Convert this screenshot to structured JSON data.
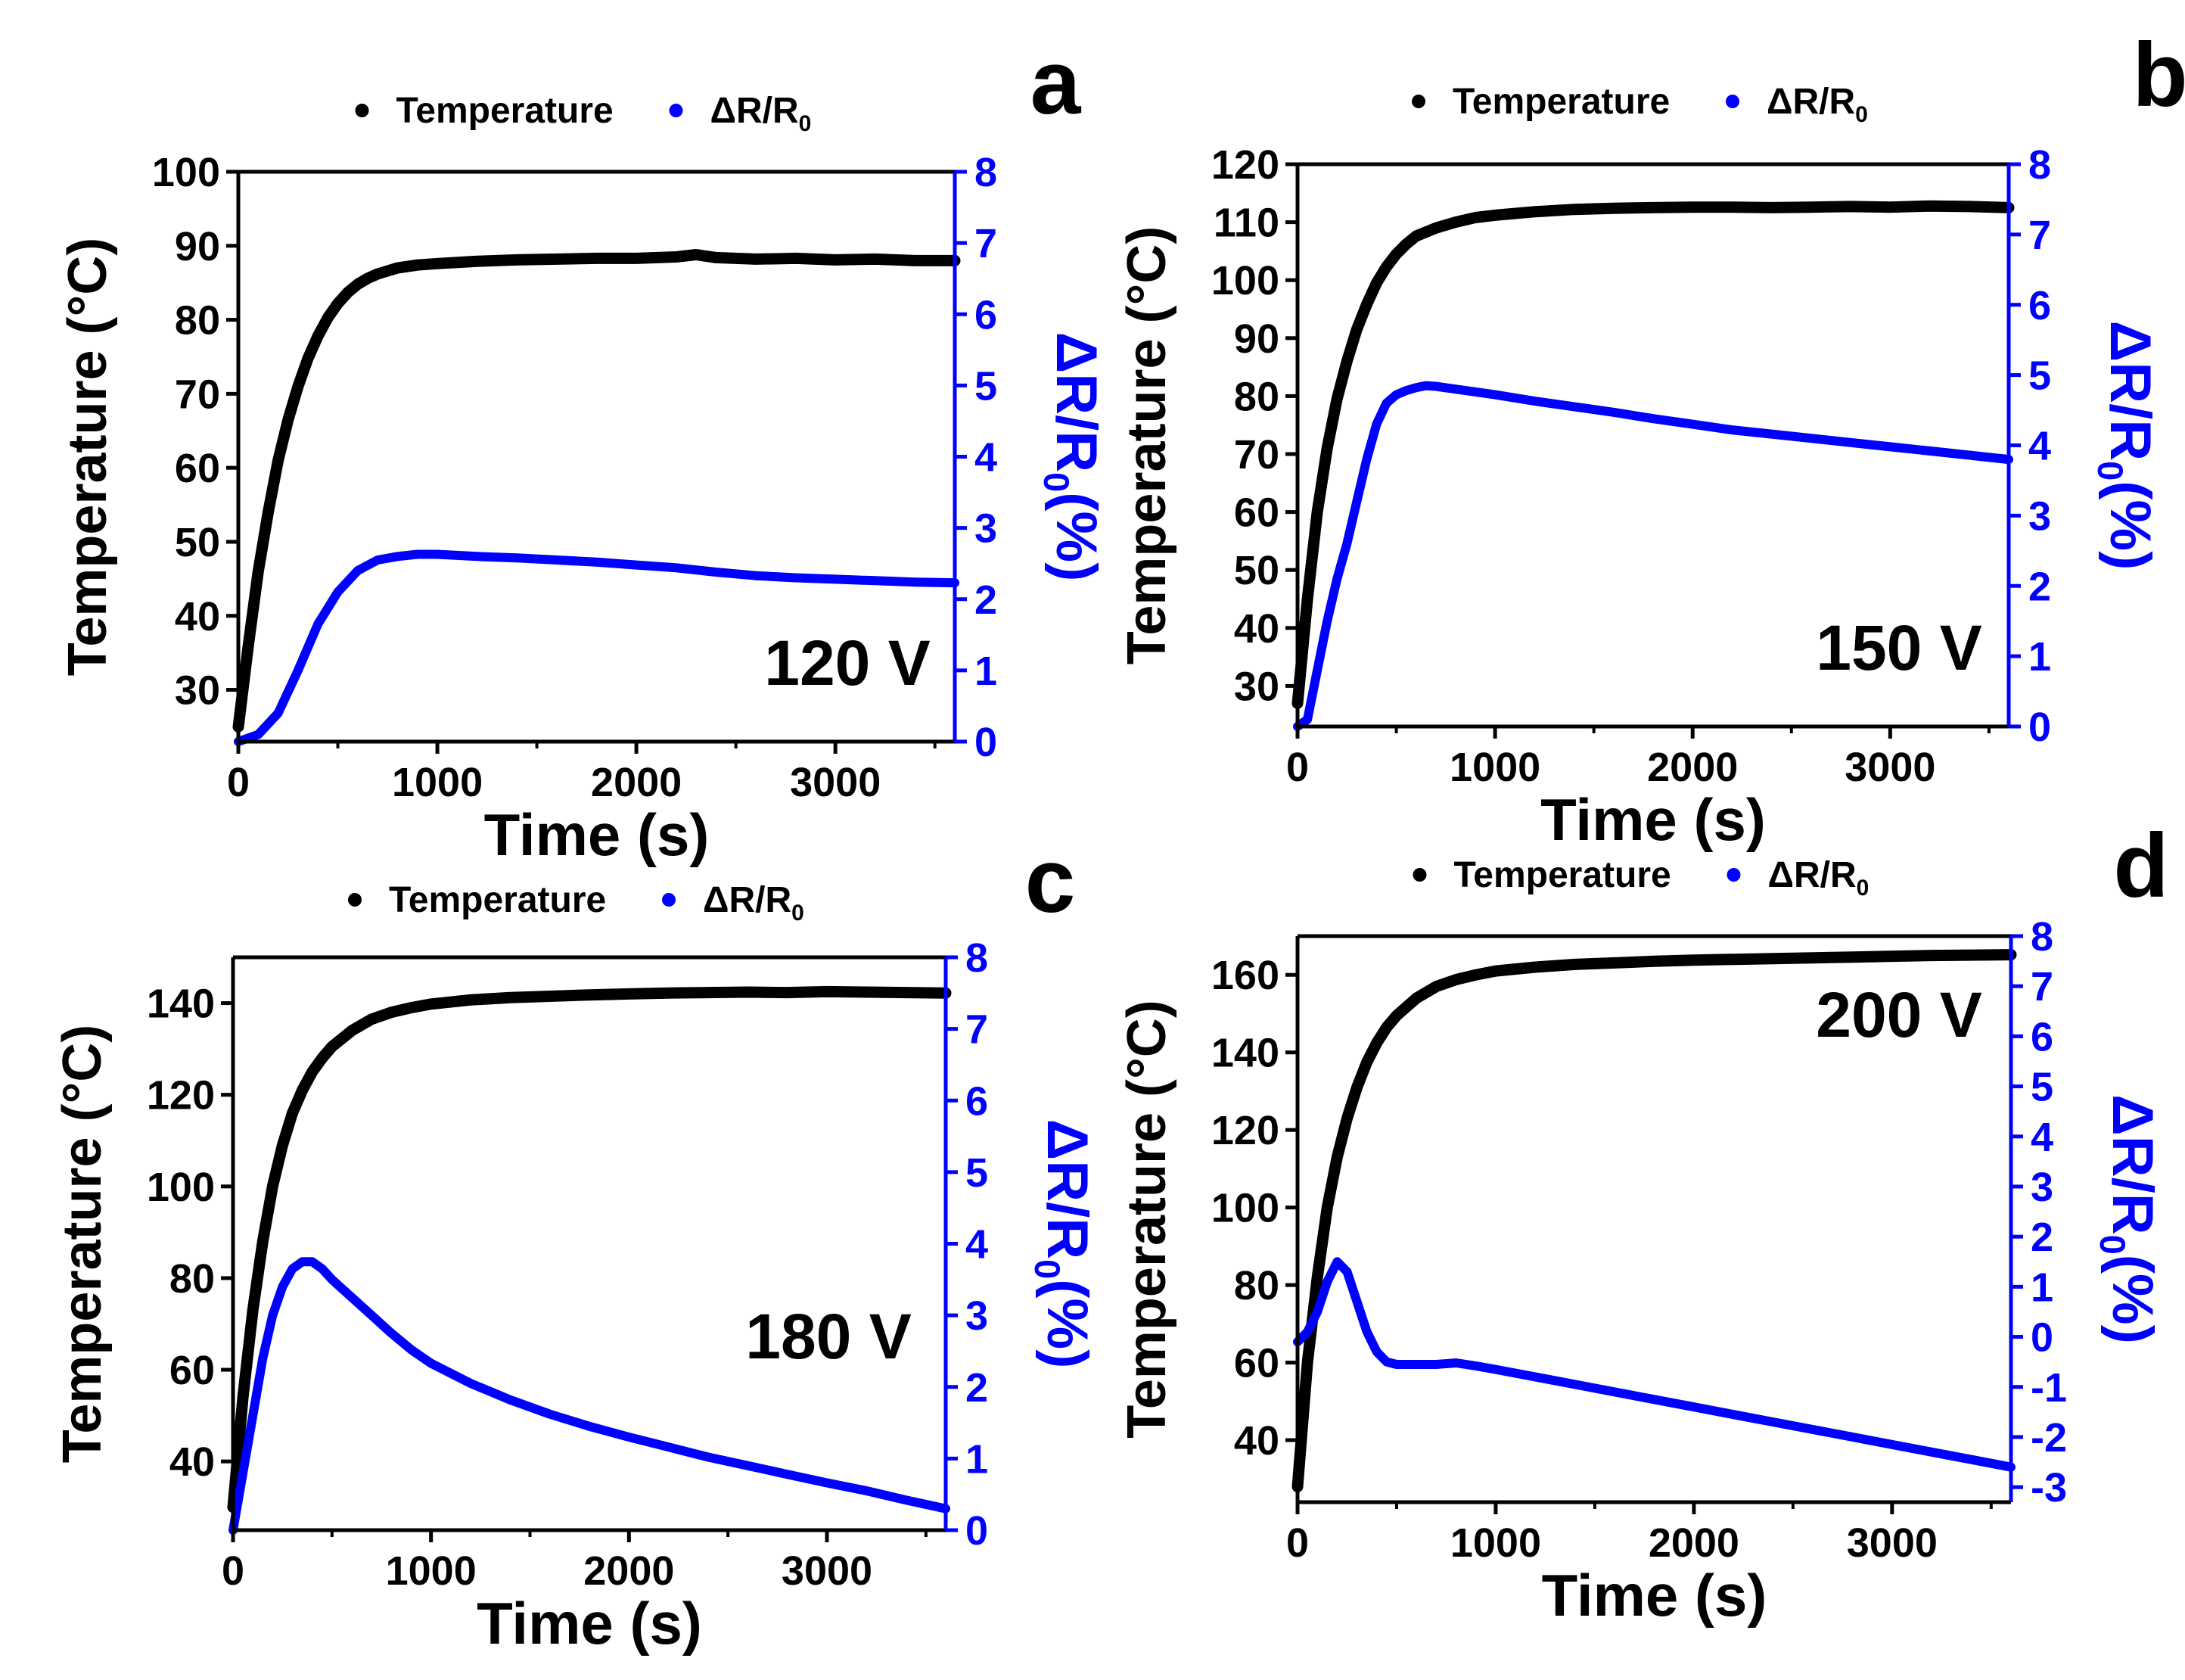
{
  "figure": {
    "temp_color": "#000000",
    "dr_color": "#0000ff"
  },
  "chart_data": [
    {
      "panel": "a",
      "type": "line",
      "xlabel": "Time (s)",
      "ylabel": "Temperature (°C)",
      "y2label": "ΔR/R0(%)",
      "xlim": [
        0,
        3600
      ],
      "ylim": [
        23,
        100
      ],
      "y2lim": [
        0,
        8
      ],
      "xticks": [
        0,
        1000,
        2000,
        3000
      ],
      "yticks": [
        30,
        40,
        50,
        60,
        70,
        80,
        90,
        100
      ],
      "y2ticks": [
        0,
        1,
        2,
        3,
        4,
        5,
        6,
        7,
        8
      ],
      "annotation": "120 V",
      "legend": [
        "Temperature",
        "ΔR/R0"
      ],
      "series": [
        {
          "name": "Temperature",
          "axis": "left",
          "x": [
            0,
            50,
            100,
            150,
            200,
            250,
            300,
            350,
            400,
            450,
            500,
            550,
            600,
            650,
            700,
            800,
            900,
            1000,
            1200,
            1400,
            1600,
            1800,
            2000,
            2200,
            2300,
            2400,
            2600,
            2800,
            3000,
            3200,
            3400,
            3600
          ],
          "y": [
            25,
            36,
            46,
            54,
            61,
            66.5,
            71,
            74.8,
            77.8,
            80.3,
            82.2,
            83.7,
            84.8,
            85.6,
            86.2,
            87,
            87.4,
            87.6,
            87.9,
            88.1,
            88.2,
            88.3,
            88.3,
            88.5,
            88.8,
            88.4,
            88.2,
            88.3,
            88.1,
            88.2,
            88,
            88
          ]
        },
        {
          "name": "ΔR/R0",
          "axis": "right",
          "x": [
            0,
            100,
            200,
            300,
            400,
            500,
            600,
            700,
            800,
            900,
            1000,
            1200,
            1400,
            1600,
            1800,
            2000,
            2200,
            2400,
            2600,
            2800,
            3000,
            3200,
            3400,
            3600
          ],
          "y": [
            0,
            0.1,
            0.4,
            1.0,
            1.65,
            2.1,
            2.4,
            2.55,
            2.6,
            2.63,
            2.63,
            2.6,
            2.58,
            2.55,
            2.52,
            2.48,
            2.44,
            2.38,
            2.33,
            2.3,
            2.28,
            2.26,
            2.24,
            2.23
          ]
        }
      ]
    },
    {
      "panel": "b",
      "type": "line",
      "xlabel": "Time (s)",
      "ylabel": "Temperature (°C)",
      "y2label": "ΔR/R0(%)",
      "xlim": [
        0,
        3600
      ],
      "ylim": [
        23,
        120
      ],
      "y2lim": [
        0,
        8
      ],
      "xticks": [
        0,
        1000,
        2000,
        3000
      ],
      "yticks": [
        30,
        40,
        50,
        60,
        70,
        80,
        90,
        100,
        110,
        120
      ],
      "y2ticks": [
        0,
        1,
        2,
        3,
        4,
        5,
        6,
        7,
        8
      ],
      "annotation": "150 V",
      "legend": [
        "Temperature",
        "ΔR/R0"
      ],
      "series": [
        {
          "name": "Temperature",
          "axis": "left",
          "x": [
            0,
            50,
            100,
            150,
            200,
            250,
            300,
            350,
            400,
            450,
            500,
            550,
            600,
            700,
            800,
            900,
            1000,
            1200,
            1400,
            1600,
            1800,
            2000,
            2200,
            2400,
            2600,
            2800,
            3000,
            3200,
            3400,
            3600
          ],
          "y": [
            27,
            45,
            60,
            71,
            79.5,
            86,
            91.5,
            95.8,
            99.5,
            102.3,
            104.5,
            106.2,
            107.6,
            109,
            110,
            110.8,
            111.2,
            111.8,
            112.2,
            112.4,
            112.5,
            112.6,
            112.6,
            112.5,
            112.6,
            112.7,
            112.6,
            112.8,
            112.7,
            112.5
          ]
        },
        {
          "name": "ΔR/R0",
          "axis": "right",
          "x": [
            0,
            50,
            100,
            150,
            200,
            250,
            300,
            350,
            400,
            450,
            500,
            550,
            600,
            650,
            700,
            800,
            1000,
            1200,
            1400,
            1600,
            1800,
            2000,
            2200,
            2400,
            2600,
            2800,
            3000,
            3200,
            3400,
            3600
          ],
          "y": [
            0,
            0.1,
            0.8,
            1.5,
            2.1,
            2.6,
            3.2,
            3.8,
            4.3,
            4.6,
            4.72,
            4.78,
            4.82,
            4.85,
            4.84,
            4.8,
            4.72,
            4.63,
            4.55,
            4.47,
            4.38,
            4.3,
            4.22,
            4.16,
            4.1,
            4.04,
            3.98,
            3.92,
            3.86,
            3.8
          ]
        }
      ]
    },
    {
      "panel": "c",
      "type": "line",
      "xlabel": "Time (s)",
      "ylabel": "Temperature (°C)",
      "y2label": "ΔR/R0(%)",
      "xlim": [
        0,
        3600
      ],
      "ylim": [
        25,
        150
      ],
      "y2lim": [
        0,
        8
      ],
      "xticks": [
        0,
        1000,
        2000,
        3000
      ],
      "yticks": [
        40,
        60,
        80,
        100,
        120,
        140
      ],
      "y2ticks": [
        0,
        1,
        2,
        3,
        4,
        5,
        6,
        7,
        8
      ],
      "annotation": "180 V",
      "legend": [
        "Temperature",
        "ΔR/R0"
      ],
      "series": [
        {
          "name": "Temperature",
          "axis": "left",
          "x": [
            0,
            50,
            100,
            150,
            200,
            250,
            300,
            350,
            400,
            450,
            500,
            600,
            700,
            800,
            900,
            1000,
            1200,
            1400,
            1600,
            1800,
            2000,
            2200,
            2400,
            2600,
            2800,
            3000,
            3200,
            3400,
            3600
          ],
          "y": [
            30,
            54,
            73,
            88,
            100,
            109,
            116,
            121,
            125,
            128,
            130.5,
            134,
            136.5,
            138,
            139,
            139.8,
            140.7,
            141.2,
            141.5,
            141.8,
            142,
            142.2,
            142.3,
            142.4,
            142.3,
            142.5,
            142.4,
            142.3,
            142.2
          ]
        },
        {
          "name": "ΔR/R0",
          "axis": "right",
          "x": [
            0,
            50,
            100,
            150,
            200,
            250,
            300,
            350,
            400,
            450,
            500,
            600,
            700,
            800,
            900,
            1000,
            1200,
            1400,
            1600,
            1800,
            2000,
            2200,
            2400,
            2600,
            2800,
            3000,
            3200,
            3400,
            3600
          ],
          "y": [
            0,
            0.8,
            1.6,
            2.4,
            3.0,
            3.4,
            3.65,
            3.75,
            3.75,
            3.65,
            3.5,
            3.25,
            3.0,
            2.75,
            2.52,
            2.33,
            2.05,
            1.82,
            1.62,
            1.45,
            1.3,
            1.16,
            1.02,
            0.9,
            0.78,
            0.66,
            0.55,
            0.42,
            0.3
          ]
        }
      ]
    },
    {
      "panel": "d",
      "type": "line",
      "xlabel": "Time (s)",
      "ylabel": "Temperature (°C)",
      "y2label": "ΔR/R0(%)",
      "xlim": [
        0,
        3600
      ],
      "ylim": [
        24,
        170
      ],
      "y2lim": [
        -3.3,
        8
      ],
      "xticks": [
        0,
        1000,
        2000,
        3000
      ],
      "yticks": [
        40,
        60,
        80,
        100,
        120,
        140,
        160
      ],
      "y2ticks": [
        -3,
        -2,
        -1,
        0,
        1,
        2,
        3,
        4,
        5,
        6,
        7,
        8
      ],
      "annotation": "200 V",
      "legend": [
        "Temperature",
        "ΔR/R0"
      ],
      "series": [
        {
          "name": "Temperature",
          "axis": "left",
          "x": [
            0,
            50,
            100,
            150,
            200,
            250,
            300,
            350,
            400,
            450,
            500,
            600,
            700,
            800,
            900,
            1000,
            1200,
            1400,
            1600,
            1800,
            2000,
            2200,
            2400,
            2600,
            2800,
            3000,
            3200,
            3400,
            3600
          ],
          "y": [
            28,
            60,
            82,
            100,
            113,
            123,
            131,
            137.5,
            142.5,
            146.5,
            149.5,
            154,
            157,
            158.8,
            160,
            161,
            162,
            162.7,
            163.1,
            163.5,
            163.8,
            164,
            164.2,
            164.4,
            164.6,
            164.8,
            165,
            165.1,
            165.2
          ]
        },
        {
          "name": "ΔR/R0",
          "axis": "right",
          "x": [
            0,
            50,
            100,
            150,
            200,
            250,
            300,
            350,
            400,
            450,
            500,
            600,
            700,
            800,
            900,
            1000,
            1200,
            1400,
            1600,
            1800,
            2000,
            2200,
            2400,
            2600,
            2800,
            3000,
            3200,
            3400,
            3600
          ],
          "y": [
            -0.1,
            0.1,
            0.5,
            1.1,
            1.5,
            1.3,
            0.7,
            0.1,
            -0.3,
            -0.5,
            -0.55,
            -0.55,
            -0.55,
            -0.52,
            -0.58,
            -0.65,
            -0.8,
            -0.95,
            -1.1,
            -1.25,
            -1.4,
            -1.55,
            -1.7,
            -1.85,
            -2.0,
            -2.15,
            -2.3,
            -2.45,
            -2.6
          ]
        }
      ]
    }
  ]
}
